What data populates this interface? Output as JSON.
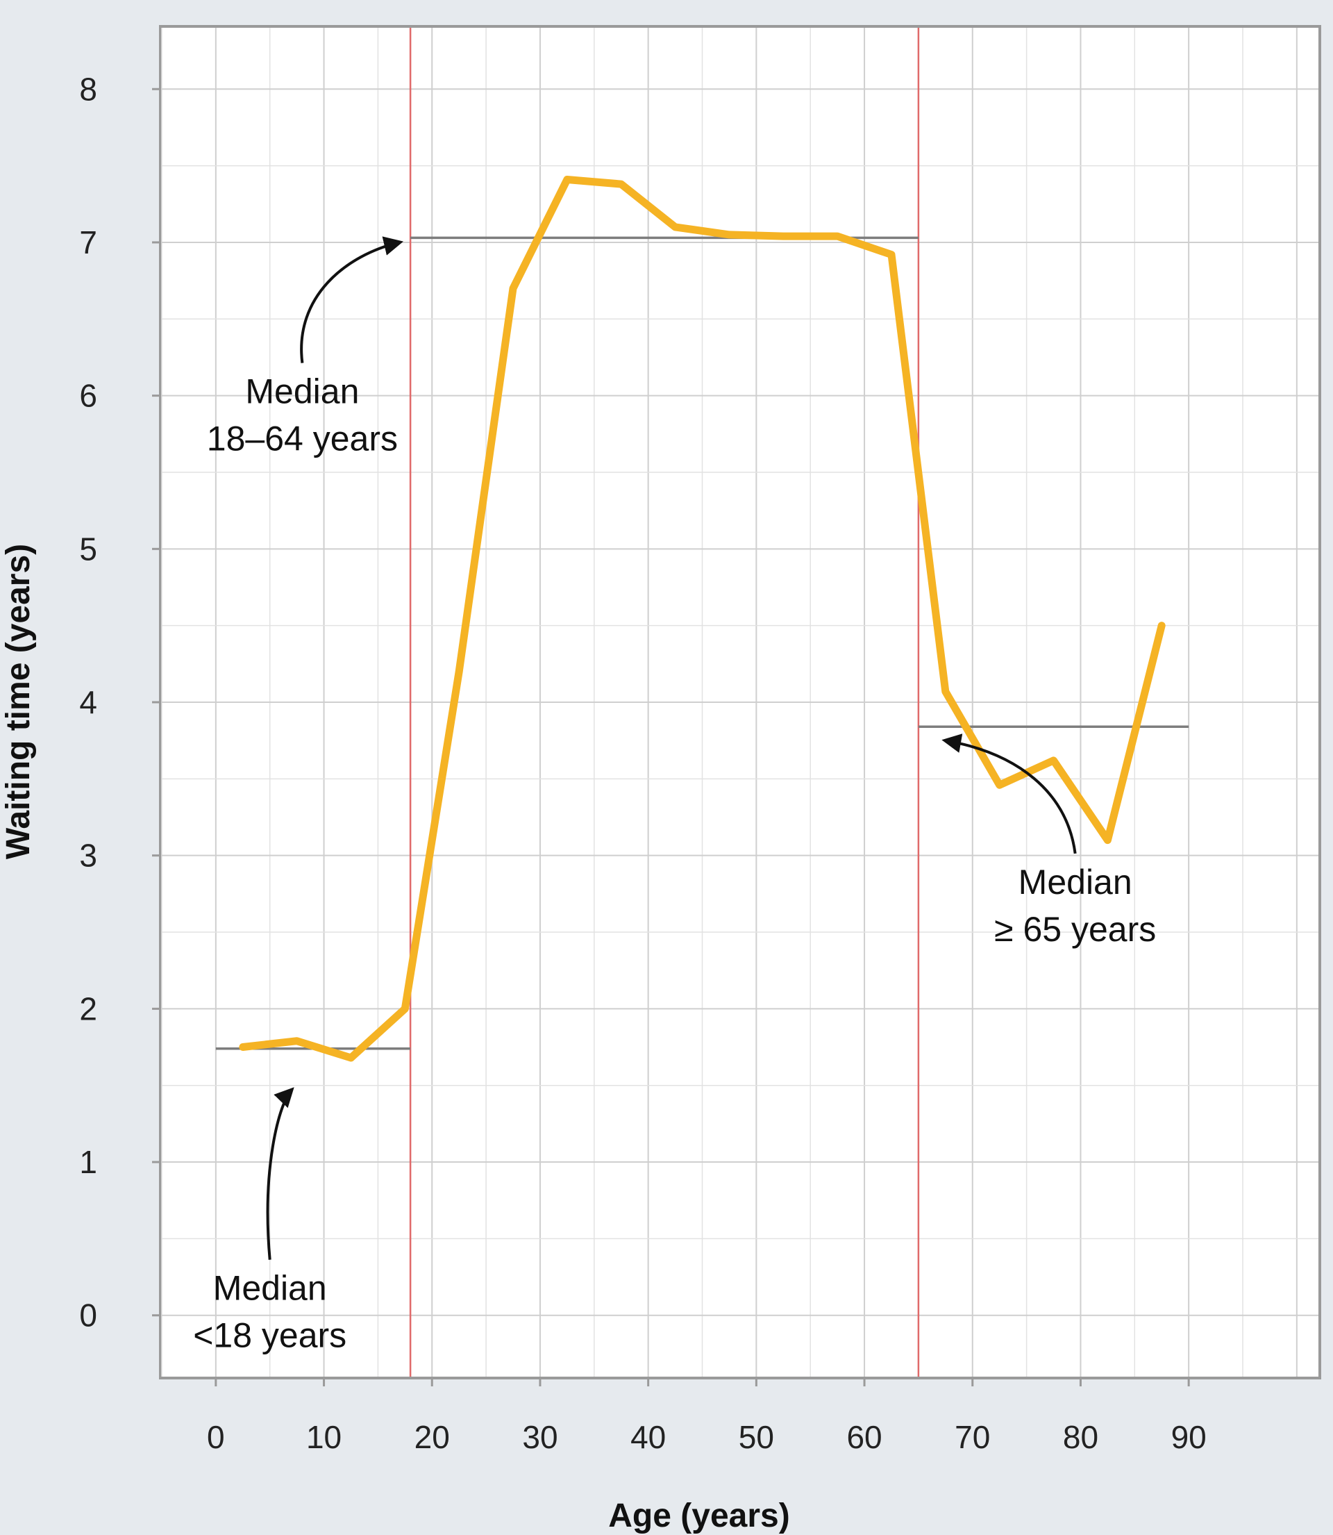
{
  "chart_data": {
    "type": "line",
    "title": "",
    "xlabel": "Age (years)",
    "ylabel": "Waiting time (years)",
    "xlim": [
      -5,
      102
    ],
    "ylim": [
      -0.4,
      8.4
    ],
    "xticks": [
      0,
      10,
      20,
      30,
      40,
      50,
      60,
      70,
      80,
      90
    ],
    "yticks": [
      0,
      1,
      2,
      3,
      4,
      5,
      6,
      7,
      8
    ],
    "grid": true,
    "series": [
      {
        "name": "",
        "color": "#f5b324",
        "x": [
          2.5,
          7.5,
          12.5,
          17.5,
          22.5,
          27.5,
          32.5,
          37.5,
          42.5,
          47.5,
          52.5,
          57.5,
          62.5,
          67.5,
          72.5,
          77.5,
          82.5,
          87.5
        ],
        "y": [
          1.75,
          1.79,
          1.68,
          2.0,
          4.2,
          6.7,
          7.41,
          7.38,
          7.1,
          7.05,
          7.04,
          7.04,
          6.92,
          4.07,
          3.46,
          3.62,
          3.1,
          4.5
        ]
      }
    ],
    "medians": [
      {
        "group": "<18",
        "x": [
          0,
          18
        ],
        "y": 1.74
      },
      {
        "group": "18-64",
        "x": [
          18,
          65
        ],
        "y": 7.03
      },
      {
        "group": ">=65",
        "x": [
          65,
          90
        ],
        "y": 3.84
      }
    ],
    "vertical_lines": [
      18,
      65
    ],
    "annotations": [
      {
        "lines": [
          "Median",
          "18–64 years"
        ],
        "x": 8,
        "y": 5.95,
        "arrow_to": [
          17,
          7.0
        ]
      },
      {
        "lines": [
          "Median",
          "<18 years"
        ],
        "x": 5,
        "y": 0.1,
        "arrow_to": [
          7,
          1.47
        ]
      },
      {
        "lines": [
          "Median",
          "≥ 65 years"
        ],
        "x": 79.5,
        "y": 2.75,
        "arrow_to": [
          67.5,
          3.75
        ]
      }
    ]
  }
}
